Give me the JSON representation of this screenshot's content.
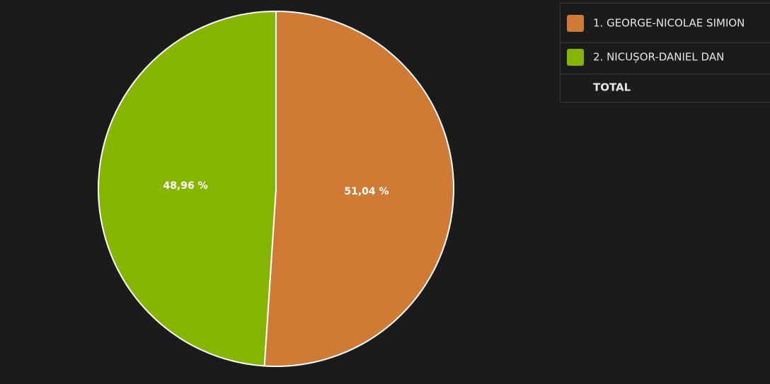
{
  "chart_data": {
    "type": "pie",
    "categories": [
      "1. GEORGE-NICOLAE SIMION",
      "2. NICUȘOR-DANIEL DAN"
    ],
    "values": [
      51.04,
      48.96
    ],
    "value_labels": [
      "51,04 %",
      "48,96 %"
    ],
    "colors": [
      "#cf7a35",
      "#85b500"
    ],
    "total_label": "TOTAL"
  }
}
